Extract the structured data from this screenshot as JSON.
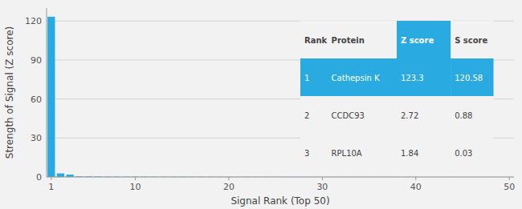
{
  "chart_data": {
    "type": "bar",
    "x": [
      1,
      2,
      3,
      4,
      5,
      6,
      7,
      8,
      9,
      10,
      11,
      12,
      13,
      14,
      15,
      16,
      17,
      18,
      19,
      20,
      21,
      22,
      23,
      24,
      25,
      26,
      27,
      28,
      29,
      30,
      31,
      32,
      33,
      34,
      35,
      36,
      37,
      38,
      39,
      40,
      41,
      42,
      43,
      44,
      45,
      46,
      47,
      48,
      49,
      50
    ],
    "values": [
      123.3,
      2.72,
      1.84,
      0.5,
      0.4,
      0.35,
      0.3,
      0.28,
      0.26,
      0.25,
      0.24,
      0.23,
      0.22,
      0.21,
      0.2,
      0.19,
      0.18,
      0.17,
      0.16,
      0.15,
      0.14,
      0.13,
      0.12,
      0.11,
      0.1,
      0.09,
      0.08,
      0.07,
      0.06,
      0.05,
      0.05,
      0.05,
      0.04,
      0.04,
      0.04,
      0.03,
      0.03,
      0.03,
      0.03,
      0.03,
      0.02,
      0.02,
      0.02,
      0.02,
      0.02,
      0.02,
      0.02,
      0.02,
      0.02,
      0.02
    ],
    "color": "#29abe2",
    "xlim": [
      0.5,
      50.5
    ],
    "xticks": [
      1,
      10,
      20,
      30,
      40,
      50
    ],
    "ylim": [
      0,
      130
    ],
    "yticks": [
      0,
      30,
      60,
      90,
      120
    ],
    "xlabel": "Signal Rank (Top 50)",
    "ylabel": "Strength of Signal (Z score)",
    "grid": true,
    "table": {
      "headers": [
        "Rank",
        "Protein",
        "Z score",
        "S score"
      ],
      "rows": [
        [
          "1",
          "Cathepsin K",
          "123.3",
          "120.58"
        ],
        [
          "2",
          "CCDC93",
          "2.72",
          "0.88"
        ],
        [
          "3",
          "RPL10A",
          "1.84",
          "0.03"
        ]
      ]
    }
  }
}
